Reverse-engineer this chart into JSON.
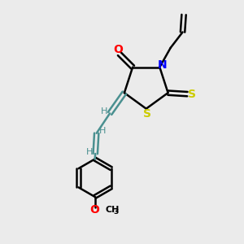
{
  "bg_color": "#ebebeb",
  "atom_colors": {
    "O": "#ff0000",
    "N": "#0000ff",
    "S": "#cccc00",
    "C": "#000000",
    "H": "#4a9090"
  },
  "bond_color": "#000000",
  "chain_color": "#4a9090",
  "figsize": [
    3.0,
    3.0
  ],
  "dpi": 100,
  "xlim": [
    0,
    10
  ],
  "ylim": [
    0,
    10
  ]
}
